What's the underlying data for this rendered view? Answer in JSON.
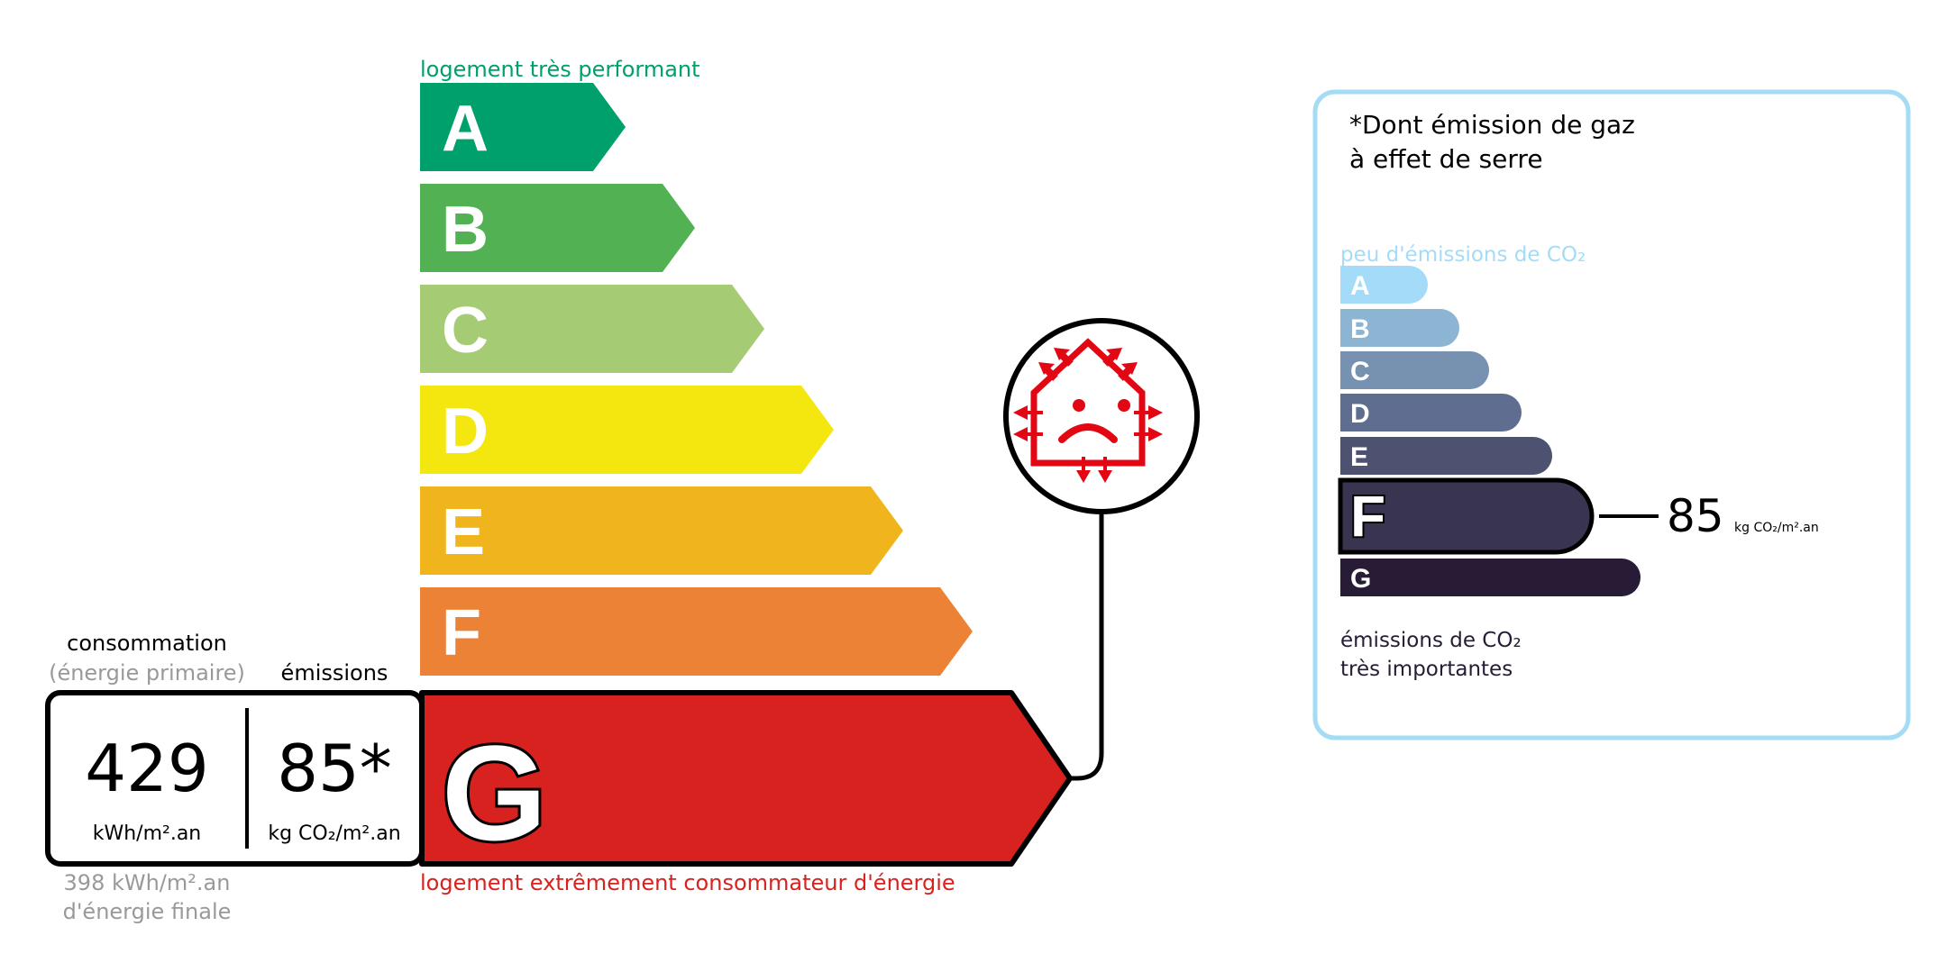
{
  "energy": {
    "top_label": "logement très performant",
    "bottom_label": "logement extrêmement consommateur d'énergie",
    "classes": [
      {
        "letter": "A",
        "color": "#00a06d"
      },
      {
        "letter": "B",
        "color": "#52b153"
      },
      {
        "letter": "C",
        "color": "#a5cc74"
      },
      {
        "letter": "D",
        "color": "#f4e70f"
      },
      {
        "letter": "E",
        "color": "#f0b41c"
      },
      {
        "letter": "F",
        "color": "#eb8235"
      },
      {
        "letter": "G",
        "color": "#d7221f"
      }
    ],
    "current_class": "G",
    "consumption_header": "consommation",
    "consumption_sub": "(énergie primaire)",
    "emissions_header": "émissions",
    "consumption_value": "429",
    "consumption_unit": "kWh/m².an",
    "emissions_value": "85*",
    "emissions_unit": "kg CO₂/m².an",
    "final_energy_value": "398 kWh/m².an",
    "final_energy_label": "d'énergie finale",
    "icon": "sad-house-heat-loss-icon"
  },
  "ges": {
    "title_line1": "*Dont émission de gaz",
    "title_line2": "à effet de serre",
    "top_label": "peu d'émissions de CO₂",
    "bottom_label_line1": "émissions de CO₂",
    "bottom_label_line2": "très importantes",
    "classes": [
      {
        "letter": "A",
        "color": "#a4dbf8"
      },
      {
        "letter": "B",
        "color": "#8cb4d3"
      },
      {
        "letter": "C",
        "color": "#7792b1"
      },
      {
        "letter": "D",
        "color": "#5f6e90"
      },
      {
        "letter": "E",
        "color": "#4d5271"
      },
      {
        "letter": "F",
        "color": "#393551"
      },
      {
        "letter": "G",
        "color": "#281b35"
      }
    ],
    "current_class": "F",
    "value": "85",
    "unit": "kg CO₂/m².an",
    "border_color": "#a5dcf5"
  }
}
